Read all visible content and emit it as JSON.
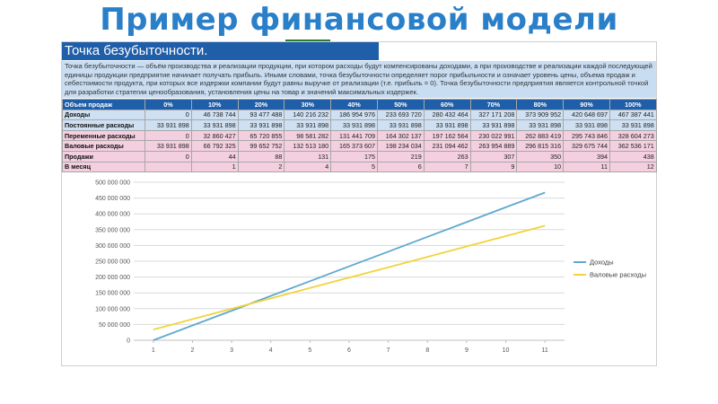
{
  "slide": {
    "title": "Пример финансовой модели",
    "header": "Точка безубыточности.",
    "description": "Точка безубыточности — объём производства и реализации продукции, при котором расходы будут компенсированы доходами, а при производстве и реализации каждой последующей единицы продукции предприятие начинает получать прибыль. Иными словами, точка безубыточности определяет порог прибыльности и означает уровень цены, объема продаж и себестоимости продукта, при которых все издержки компании будут равны выручке от реализации (т.е. прибыль = 0). Точка безубыточности предприятия является контрольной точкой для разработки стратегии ценообразования, установления цены на товар и значений максимальных издержек."
  },
  "table": {
    "header_label": "Объем продаж",
    "columns": [
      "0%",
      "10%",
      "20%",
      "30%",
      "40%",
      "50%",
      "60%",
      "70%",
      "80%",
      "90%",
      "100%"
    ],
    "rows": [
      {
        "label": "Доходы",
        "style": "blue",
        "cells": [
          "0",
          "46 738 744",
          "93 477 488",
          "140 216 232",
          "186 954 976",
          "233 693 720",
          "280 432 464",
          "327 171 208",
          "373 909 952",
          "420 648 697",
          "467 387 441"
        ]
      },
      {
        "label": "Постоянные расходы",
        "style": "blue",
        "cells": [
          "33 931 898",
          "33 931 898",
          "33 931 898",
          "33 931 898",
          "33 931 898",
          "33 931 898",
          "33 931 898",
          "33 931 898",
          "33 931 898",
          "33 931 898",
          "33 931 898"
        ]
      },
      {
        "label": "Переменные расходы",
        "style": "pink",
        "cells": [
          "0",
          "32 860 427",
          "65 720 855",
          "98 581 282",
          "131 441 709",
          "164 302 137",
          "197 162 564",
          "230 022 991",
          "262 883 419",
          "295 743 846",
          "328 604 273"
        ]
      },
      {
        "label": "Валовые расходы",
        "style": "pink",
        "cells": [
          "33 931 898",
          "66 792 325",
          "99 652 752",
          "132 513 180",
          "165 373 607",
          "198 234 034",
          "231 094 462",
          "263 954 889",
          "296 815 316",
          "329 675 744",
          "362 536 171"
        ]
      },
      {
        "label": "Продажи",
        "style": "pink",
        "cells": [
          "0",
          "44",
          "88",
          "131",
          "175",
          "219",
          "263",
          "307",
          "350",
          "394",
          "438"
        ]
      },
      {
        "label": "В месяц",
        "style": "pink",
        "cells": [
          "",
          "1",
          "2",
          "4",
          "5",
          "6",
          "7",
          "9",
          "10",
          "11",
          "12"
        ]
      }
    ]
  },
  "chart_data": {
    "type": "line",
    "x": [
      1,
      2,
      3,
      4,
      5,
      6,
      7,
      8,
      9,
      10,
      11
    ],
    "xticks": [
      "1",
      "2",
      "3",
      "4",
      "5",
      "6",
      "7",
      "8",
      "9",
      "10",
      "11"
    ],
    "ylim": [
      0,
      500000000
    ],
    "yticks": [
      0,
      50000000,
      100000000,
      150000000,
      200000000,
      250000000,
      300000000,
      350000000,
      400000000,
      450000000,
      500000000
    ],
    "ytick_labels": [
      "0",
      "50 000 000",
      "100 000 000",
      "150 000 000",
      "200 000 000",
      "250 000 000",
      "300 000 000",
      "350 000 000",
      "400 000 000",
      "450 000 000",
      "500 000 000"
    ],
    "grid": true,
    "legend_position": "right",
    "series": [
      {
        "name": "Доходы",
        "color": "#5ea9cf",
        "values": [
          0,
          46738744,
          93477488,
          140216232,
          186954976,
          233693720,
          280432464,
          327171208,
          373909952,
          420648697,
          467387441
        ]
      },
      {
        "name": "Валовые расходы",
        "color": "#f2d33a",
        "values": [
          33931898,
          66792325,
          99652752,
          132513180,
          165373607,
          198234034,
          231094462,
          263954889,
          296815316,
          329675744,
          362536171
        ]
      }
    ]
  }
}
